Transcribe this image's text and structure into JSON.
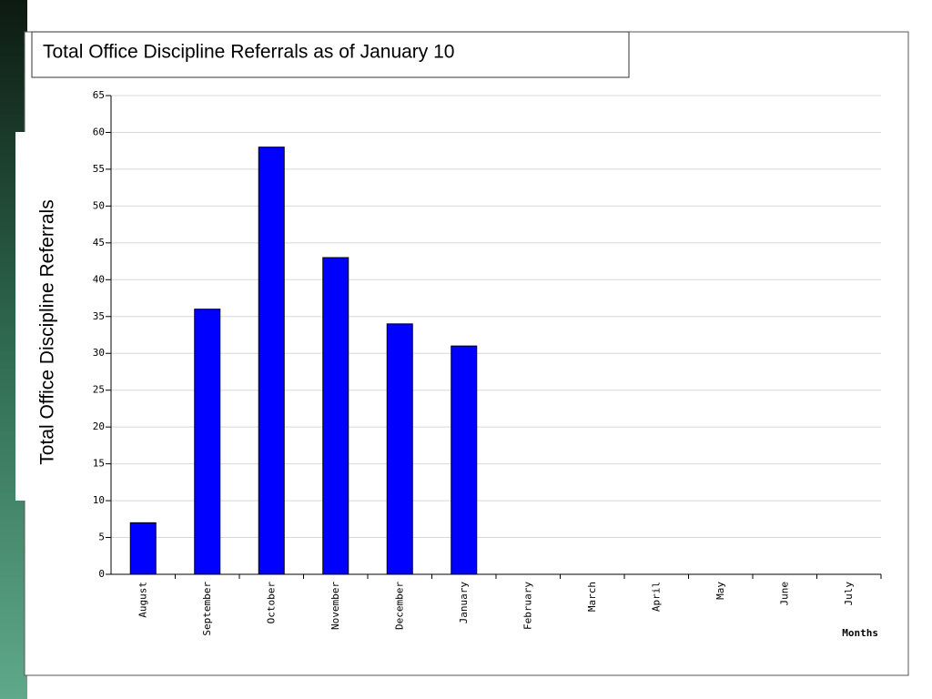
{
  "chart_data": {
    "type": "bar",
    "title": "Total Office Discipline Referrals as of January 10",
    "y_label": "Total Office Discipline Referrals",
    "x_label": "Months",
    "categories": [
      "August",
      "September",
      "October",
      "November",
      "December",
      "January",
      "February",
      "March",
      "April",
      "May",
      "June",
      "July"
    ],
    "values": [
      7,
      36,
      58,
      43,
      34,
      31,
      null,
      null,
      null,
      null,
      null,
      null
    ],
    "color": "#0000ff",
    "ylim": [
      0,
      65
    ],
    "yticks": [
      0,
      5,
      10,
      15,
      20,
      25,
      30,
      35,
      40,
      45,
      50,
      55,
      60,
      65
    ],
    "grid": true
  }
}
